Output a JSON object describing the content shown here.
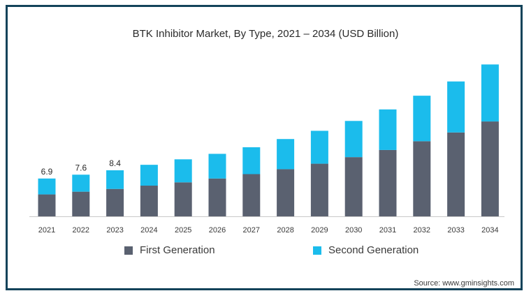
{
  "chart_data": {
    "type": "bar",
    "stacked": true,
    "title": "BTK Inhibitor Market, By Type, 2021 – 2034 (USD Billion)",
    "categories": [
      "2021",
      "2022",
      "2023",
      "2024",
      "2025",
      "2026",
      "2027",
      "2028",
      "2029",
      "2030",
      "2031",
      "2032",
      "2033",
      "2034"
    ],
    "series": [
      {
        "name": "First Generation",
        "color": "#5a6170",
        "values": [
          4.0,
          4.5,
          5.0,
          5.6,
          6.2,
          6.9,
          7.7,
          8.6,
          9.6,
          10.8,
          12.1,
          13.7,
          15.3,
          17.3
        ]
      },
      {
        "name": "Second Generation",
        "color": "#1bbcec",
        "values": [
          2.9,
          3.1,
          3.4,
          3.8,
          4.2,
          4.5,
          4.9,
          5.5,
          6.0,
          6.6,
          7.4,
          8.3,
          9.3,
          10.4
        ]
      }
    ],
    "data_labels": [
      "6.9",
      "7.6",
      "8.4"
    ],
    "ylim": [
      0,
      28
    ],
    "grid": false,
    "legend_position": "bottom"
  },
  "source": "Source: www.gminsights.com"
}
